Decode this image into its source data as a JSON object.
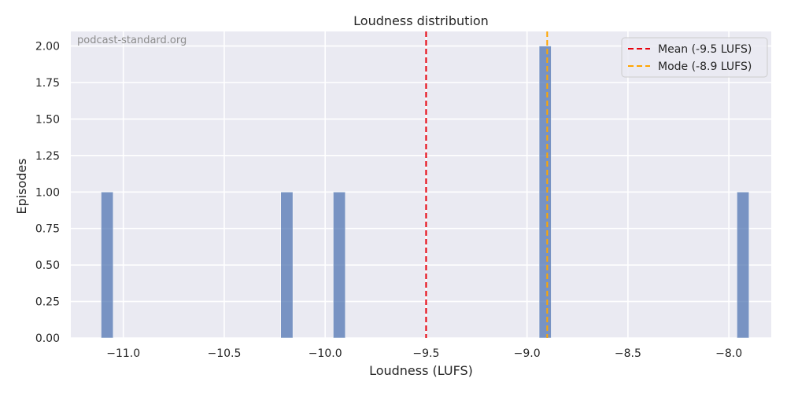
{
  "chart_data": {
    "type": "bar",
    "title": "Loudness distribution",
    "xlabel": "Loudness (LUFS)",
    "ylabel": "Episodes",
    "watermark": "podcast-standard.org",
    "xlim": [
      -11.26,
      -7.79
    ],
    "ylim": [
      0,
      2.1
    ],
    "bin_width": 0.06,
    "x_ticks": [
      -11.0,
      -10.5,
      -10.0,
      -9.5,
      -9.0,
      -8.5,
      -8.0
    ],
    "x_tick_labels": [
      "−11.0",
      "−10.5",
      "−10.0",
      "−9.5",
      "−9.0",
      "−8.5",
      "−8.0"
    ],
    "y_ticks": [
      0,
      0.25,
      0.5,
      0.75,
      1.0,
      1.25,
      1.5,
      1.75,
      2.0
    ],
    "y_tick_labels": [
      "0.00",
      "0.25",
      "0.50",
      "0.75",
      "1.00",
      "1.25",
      "1.50",
      "1.75",
      "2.00"
    ],
    "bars": [
      {
        "x": -11.08,
        "value": 1
      },
      {
        "x": -10.19,
        "value": 1
      },
      {
        "x": -9.93,
        "value": 1
      },
      {
        "x": -8.91,
        "value": 2
      },
      {
        "x": -7.93,
        "value": 1
      }
    ],
    "reference_lines": [
      {
        "label": "Mean (-9.5 LUFS)",
        "x": -9.5,
        "color": "#e8000b"
      },
      {
        "label": "Mode (-8.9 LUFS)",
        "x": -8.9,
        "color": "#ffa500"
      }
    ],
    "grid": true,
    "legend_position": "top-right",
    "bar_color": "#4c72b0"
  }
}
